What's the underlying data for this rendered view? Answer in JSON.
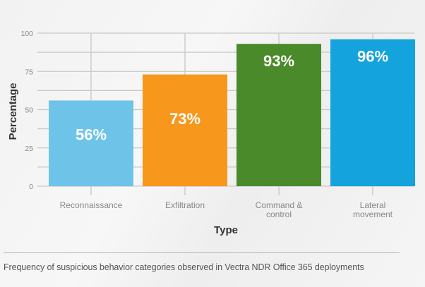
{
  "chart_data": {
    "type": "bar",
    "xlabel": "Type",
    "ylabel": "Percentage",
    "ylim": [
      0,
      100
    ],
    "yticks": [
      0,
      25,
      50,
      75,
      100
    ],
    "grid": true,
    "categories": [
      "Reconnaissance",
      "Exfiltration",
      "Command & control",
      "Lateral movement"
    ],
    "category_lines": [
      [
        "Reconnaissance"
      ],
      [
        "Exfiltration"
      ],
      [
        "Command &",
        "control"
      ],
      [
        "Lateral",
        "movement"
      ]
    ],
    "values": [
      56,
      73,
      93,
      96
    ],
    "data_labels": [
      "56%",
      "73%",
      "93%",
      "96%"
    ],
    "colors": [
      "#6EC4E8",
      "#F7971C",
      "#4A8A2A",
      "#14A3DC"
    ]
  },
  "caption": "Frequency of suspicious behavior categories observed in Vectra NDR Office 365 deployments"
}
